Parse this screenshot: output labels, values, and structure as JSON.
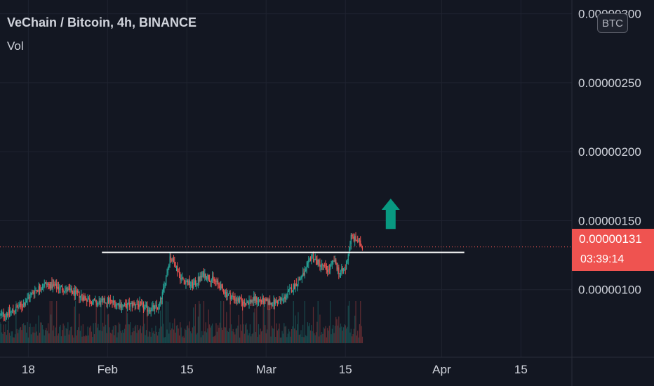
{
  "header": {
    "title": "VeChain / Bitcoin, 4h, BINANCE",
    "indicator": "Vol"
  },
  "currency_badge": "BTC",
  "current_price": {
    "price": "0.00000131",
    "countdown": "03:39:14",
    "color": "#ef5350"
  },
  "colors": {
    "background": "#131722",
    "up": "#26a69a",
    "down": "#ef5350",
    "arrow": "#089981",
    "resistance_line": "#ffffff"
  },
  "chart_data": {
    "type": "candlestick",
    "symbol": "VET/BTC",
    "timeframe": "4h",
    "exchange": "BINANCE",
    "y_axis": {
      "position": "right",
      "tick_values": [
        1e-06,
        1.5e-06,
        2e-06,
        2.5e-06,
        3e-06
      ],
      "tick_labels": [
        "0.00000100",
        "0.00000150",
        "0.00000200",
        "0.00000250",
        "0.00000300"
      ],
      "range": [
        5.1e-07,
        3.1e-06
      ]
    },
    "x_axis": {
      "tick_labels": [
        "18",
        "Feb",
        "15",
        "Mar",
        "15",
        "Apr",
        "15"
      ],
      "tick_dates": [
        "2021-01-18",
        "2021-02-01",
        "2021-02-15",
        "2021-03-01",
        "2021-03-15",
        "2021-04-01",
        "2021-04-15"
      ],
      "range": [
        "2021-01-13",
        "2021-04-24"
      ]
    },
    "price_path": [
      [
        "2021-01-13",
        8.1e-07
      ],
      [
        "2021-01-15",
        8.4e-07
      ],
      [
        "2021-01-17",
        8.9e-07
      ],
      [
        "2021-01-19",
        9.9e-07
      ],
      [
        "2021-01-21",
        1.04e-06
      ],
      [
        "2021-01-24",
        1.01e-06
      ],
      [
        "2021-01-27",
        9.6e-07
      ],
      [
        "2021-01-30",
        9e-07
      ],
      [
        "2021-02-01",
        9.2e-07
      ],
      [
        "2021-02-04",
        8.8e-07
      ],
      [
        "2021-02-06",
        9e-07
      ],
      [
        "2021-02-08",
        8.6e-07
      ],
      [
        "2021-02-10",
        8.7e-07
      ],
      [
        "2021-02-11",
        1.02e-06
      ],
      [
        "2021-02-12",
        1.24e-06
      ],
      [
        "2021-02-13",
        1.18e-06
      ],
      [
        "2021-02-14",
        1.08e-06
      ],
      [
        "2021-02-16",
        1.03e-06
      ],
      [
        "2021-02-18",
        1.11e-06
      ],
      [
        "2021-02-20",
        1.06e-06
      ],
      [
        "2021-02-22",
        9.7e-07
      ],
      [
        "2021-02-25",
        9e-07
      ],
      [
        "2021-02-27",
        9.3e-07
      ],
      [
        "2021-03-02",
        9e-07
      ],
      [
        "2021-03-04",
        9.3e-07
      ],
      [
        "2021-03-06",
        1.03e-06
      ],
      [
        "2021-03-08",
        1.13e-06
      ],
      [
        "2021-03-09",
        1.25e-06
      ],
      [
        "2021-03-10",
        1.2e-06
      ],
      [
        "2021-03-12",
        1.14e-06
      ],
      [
        "2021-03-13",
        1.21e-06
      ],
      [
        "2021-03-14",
        1.12e-06
      ],
      [
        "2021-03-15",
        1.15e-06
      ],
      [
        "2021-03-16",
        1.38e-06
      ],
      [
        "2021-03-17",
        1.36e-06
      ],
      [
        "2021-03-18",
        1.31e-06
      ]
    ],
    "resistance_line": {
      "from": "2021-01-31",
      "to": "2021-04-05",
      "price": 1.27e-06
    },
    "up_arrow": {
      "date": "2021-03-23",
      "from_price": 1.44e-06,
      "to_price": 1.66e-06
    },
    "current_price_line": 1.31e-06,
    "grid": true,
    "volume_pane": true
  }
}
